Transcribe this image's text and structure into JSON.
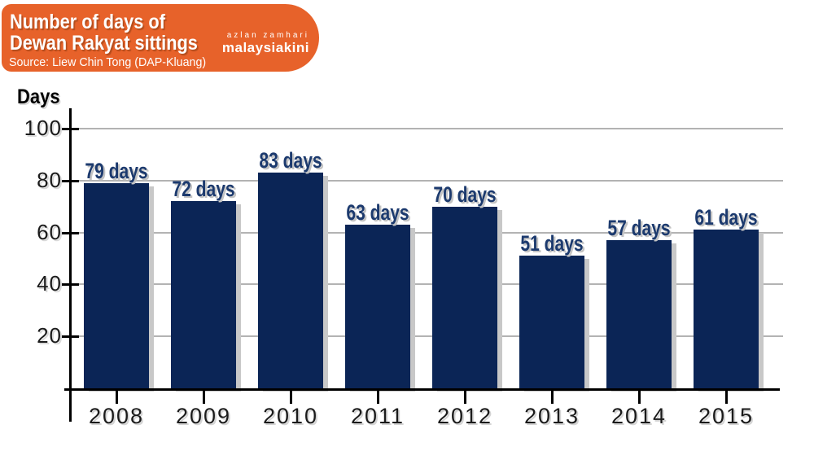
{
  "header": {
    "title_line1": "Number of days of",
    "title_line2": "Dewan Rakyat sittings",
    "source": "Source: Liew Chin Tong  (DAP-Kluang)",
    "credit_name": "azlan zamhari",
    "brand": "malaysiakini",
    "banner_color": "#e7622a"
  },
  "chart_data": {
    "type": "bar",
    "title": "Number of days of Dewan Rakyat sittings",
    "ylabel": "Days",
    "xlabel": "",
    "categories": [
      "2008",
      "2009",
      "2010",
      "2011",
      "2012",
      "2013",
      "2014",
      "2015"
    ],
    "values": [
      79,
      72,
      83,
      63,
      70,
      51,
      57,
      61
    ],
    "value_labels": [
      "79 days",
      "72 days",
      "83 days",
      "63 days",
      "70 days",
      "51 days",
      "57 days",
      "61 days"
    ],
    "ylim": [
      0,
      100
    ],
    "yticks": [
      20,
      40,
      60,
      80,
      100
    ],
    "grid": true,
    "legend": false,
    "bar_color": "#0b2556",
    "value_label_color": "#1c3a6e",
    "gridline_color": "#b3b3b3",
    "axis_color": "#000000"
  }
}
